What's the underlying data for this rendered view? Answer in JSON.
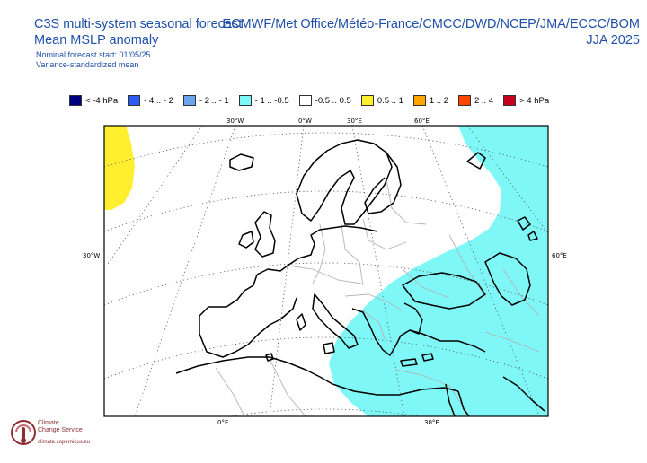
{
  "header": {
    "title_line1": "C3S multi-system seasonal forecast",
    "title_line2": "Mean MSLP anomaly",
    "subtitle_line1": "Nominal forecast start: 01/05/25",
    "subtitle_line2": "Variance-standardized mean",
    "systems": "ECMWF/Met Office/Météo-France/CMCC/DWD/NCEP/JMA/ECCC/BOM",
    "season": "JJA 2025"
  },
  "legend": [
    {
      "label": "< -4 hPa",
      "color": "#000080"
    },
    {
      "label": "- 4 .. - 2",
      "color": "#2f5bf5"
    },
    {
      "label": "- 2 .. - 1",
      "color": "#6aa3ee"
    },
    {
      "label": "- 1 .. -0.5",
      "color": "#7ff7f7"
    },
    {
      "label": "-0.5 .. 0.5",
      "color": "#ffffff"
    },
    {
      "label": "0.5 .. 1",
      "color": "#ffef2f"
    },
    {
      "label": "1 .. 2",
      "color": "#ffa500"
    },
    {
      "label": "2 .. 4",
      "color": "#ff4500"
    },
    {
      "label": "> 4 hPa",
      "color": "#c8001e"
    }
  ],
  "map": {
    "ticks_top": [
      "30°W",
      "0°W",
      "30°E",
      "60°E"
    ],
    "tick_left": "30°W",
    "tick_right": "60°E",
    "ticks_bottom": [
      "0°E",
      "30°E"
    ],
    "anomaly_regions": [
      {
        "category": "0.5 .. 1",
        "color": "#ffef2f",
        "area": "west"
      },
      {
        "category": "- 1 .. -0.5",
        "color": "#7ff7f7",
        "area": "east"
      }
    ],
    "land_line_color": "#000000",
    "border_color": "#b4b4b4"
  },
  "logo": {
    "name_line1": "Climate",
    "name_line2": "Change Service",
    "url": "climate.copernicus.eu"
  }
}
